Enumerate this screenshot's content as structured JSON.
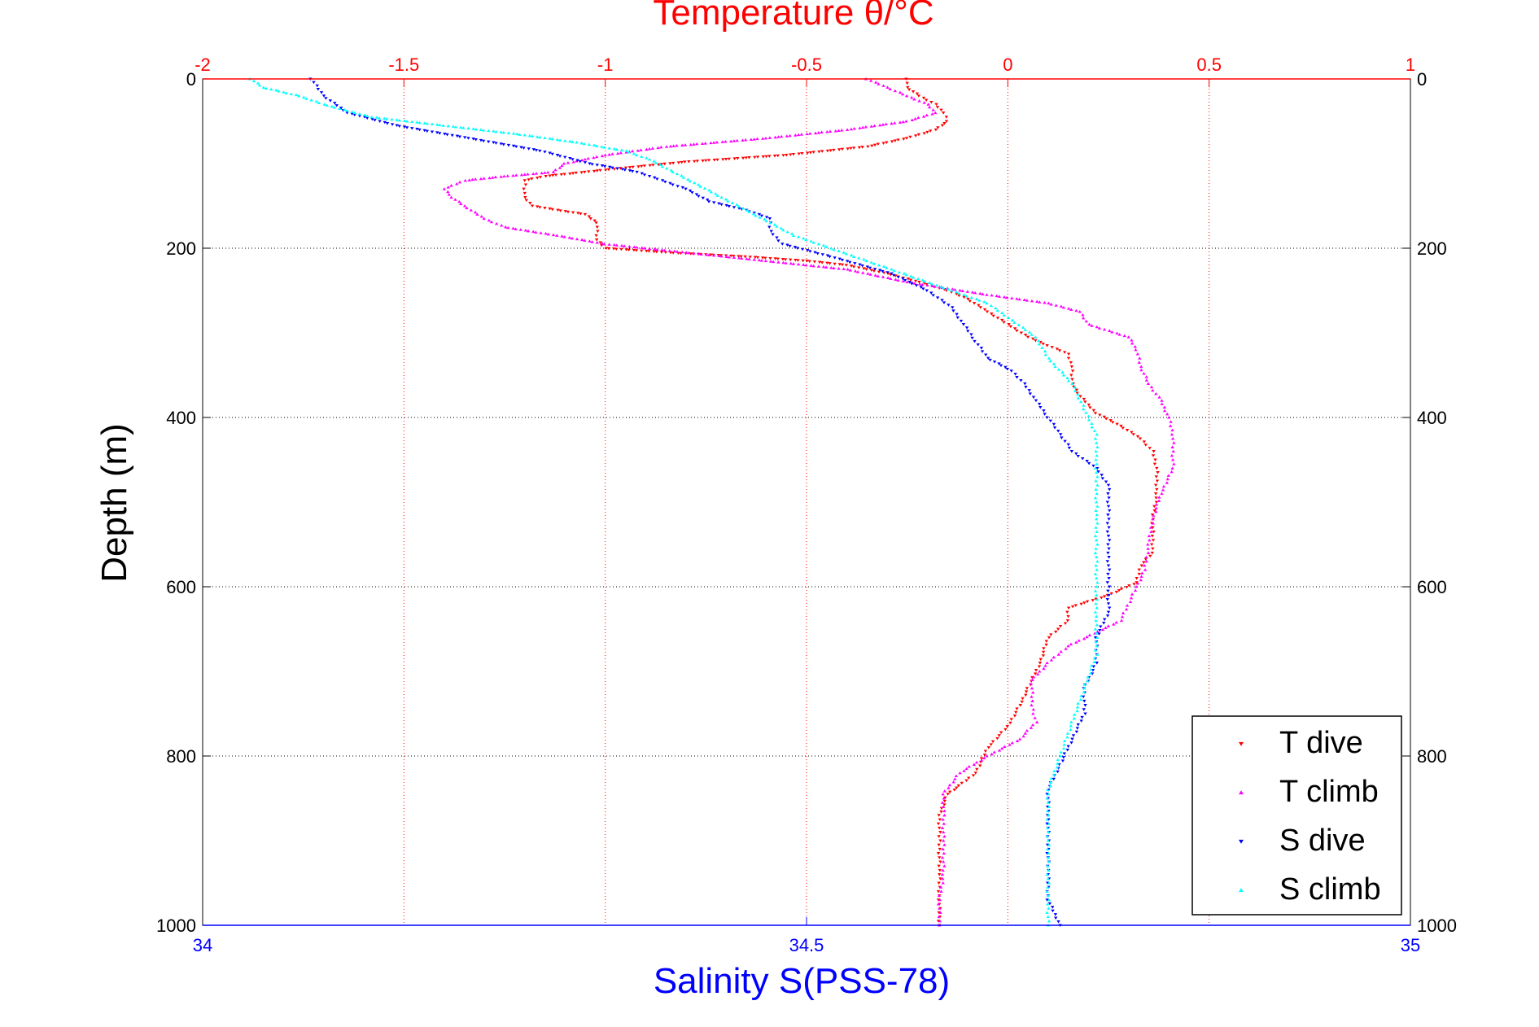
{
  "chart_data": {
    "type": "scatter",
    "title_top": "Temperature θ/°C",
    "xlabel_bottom": "Salinity S(PSS-78)",
    "ylabel": "Depth (m)",
    "temperature_axis": {
      "range": [
        -2,
        1
      ],
      "ticks": [
        "-2",
        "-1.5",
        "-1",
        "-0.5",
        "0",
        "0.5",
        "1"
      ],
      "color": "#ff0000",
      "position": "top"
    },
    "salinity_axis": {
      "range": [
        34,
        35
      ],
      "ticks": [
        "34",
        "34.5",
        "35"
      ],
      "color": "#0000ff",
      "position": "bottom"
    },
    "depth_axis": {
      "range": [
        0,
        1000
      ],
      "reversed": true,
      "ticks": [
        "0",
        "200",
        "400",
        "600",
        "800",
        "1000"
      ]
    },
    "grid": true,
    "legend_position": "bottom-right",
    "series": [
      {
        "name": "T dive",
        "axis": "temperature",
        "color": "#ff0000",
        "marker": "triangle-down",
        "points": [
          [
            -0.25,
            0
          ],
          [
            -0.25,
            10
          ],
          [
            -0.22,
            20
          ],
          [
            -0.18,
            30
          ],
          [
            -0.16,
            40
          ],
          [
            -0.15,
            50
          ],
          [
            -0.18,
            60
          ],
          [
            -0.25,
            70
          ],
          [
            -0.35,
            80
          ],
          [
            -0.55,
            90
          ],
          [
            -0.8,
            98
          ],
          [
            -0.95,
            105
          ],
          [
            -1.05,
            110
          ],
          [
            -1.15,
            115
          ],
          [
            -1.2,
            120
          ],
          [
            -1.2,
            130
          ],
          [
            -1.2,
            140
          ],
          [
            -1.18,
            150
          ],
          [
            -1.12,
            155
          ],
          [
            -1.05,
            160
          ],
          [
            -1.02,
            170
          ],
          [
            -1.02,
            180
          ],
          [
            -1.02,
            190
          ],
          [
            -1.0,
            200
          ],
          [
            -0.85,
            205
          ],
          [
            -0.65,
            210
          ],
          [
            -0.5,
            215
          ],
          [
            -0.4,
            220
          ],
          [
            -0.3,
            230
          ],
          [
            -0.22,
            240
          ],
          [
            -0.15,
            250
          ],
          [
            -0.1,
            260
          ],
          [
            -0.05,
            275
          ],
          [
            0.0,
            290
          ],
          [
            0.05,
            305
          ],
          [
            0.1,
            315
          ],
          [
            0.15,
            325
          ],
          [
            0.16,
            340
          ],
          [
            0.16,
            360
          ],
          [
            0.18,
            375
          ],
          [
            0.22,
            395
          ],
          [
            0.28,
            410
          ],
          [
            0.33,
            425
          ],
          [
            0.36,
            440
          ],
          [
            0.37,
            460
          ],
          [
            0.37,
            490
          ],
          [
            0.36,
            520
          ],
          [
            0.36,
            560
          ],
          [
            0.33,
            575
          ],
          [
            0.32,
            595
          ],
          [
            0.25,
            610
          ],
          [
            0.15,
            625
          ],
          [
            0.15,
            640
          ],
          [
            0.1,
            660
          ],
          [
            0.08,
            690
          ],
          [
            0.05,
            720
          ],
          [
            0.03,
            740
          ],
          [
            0.0,
            765
          ],
          [
            -0.05,
            790
          ],
          [
            -0.08,
            820
          ],
          [
            -0.12,
            835
          ],
          [
            -0.15,
            845
          ],
          [
            -0.17,
            870
          ],
          [
            -0.17,
            900
          ],
          [
            -0.17,
            940
          ],
          [
            -0.17,
            970
          ],
          [
            -0.17,
            1000
          ]
        ]
      },
      {
        "name": "T climb",
        "axis": "temperature",
        "color": "#ff00ff",
        "marker": "triangle-up",
        "points": [
          [
            -0.35,
            0
          ],
          [
            -0.3,
            10
          ],
          [
            -0.25,
            20
          ],
          [
            -0.2,
            30
          ],
          [
            -0.18,
            40
          ],
          [
            -0.25,
            50
          ],
          [
            -0.4,
            60
          ],
          [
            -0.6,
            70
          ],
          [
            -0.85,
            80
          ],
          [
            -1.0,
            90
          ],
          [
            -1.1,
            100
          ],
          [
            -1.13,
            110
          ],
          [
            -1.25,
            115
          ],
          [
            -1.35,
            120
          ],
          [
            -1.4,
            130
          ],
          [
            -1.38,
            140
          ],
          [
            -1.35,
            150
          ],
          [
            -1.3,
            165
          ],
          [
            -1.25,
            175
          ],
          [
            -1.12,
            185
          ],
          [
            -1.0,
            195
          ],
          [
            -0.8,
            205
          ],
          [
            -0.6,
            215
          ],
          [
            -0.4,
            225
          ],
          [
            -0.25,
            240
          ],
          [
            -0.05,
            255
          ],
          [
            0.1,
            265
          ],
          [
            0.18,
            275
          ],
          [
            0.2,
            290
          ],
          [
            0.3,
            305
          ],
          [
            0.32,
            320
          ],
          [
            0.33,
            340
          ],
          [
            0.35,
            360
          ],
          [
            0.38,
            380
          ],
          [
            0.4,
            400
          ],
          [
            0.41,
            420
          ],
          [
            0.41,
            440
          ],
          [
            0.41,
            460
          ],
          [
            0.38,
            490
          ],
          [
            0.36,
            520
          ],
          [
            0.35,
            550
          ],
          [
            0.34,
            580
          ],
          [
            0.32,
            600
          ],
          [
            0.28,
            640
          ],
          [
            0.15,
            670
          ],
          [
            0.1,
            690
          ],
          [
            0.06,
            710
          ],
          [
            0.06,
            740
          ],
          [
            0.07,
            760
          ],
          [
            0.03,
            780
          ],
          [
            -0.05,
            800
          ],
          [
            -0.12,
            820
          ],
          [
            -0.16,
            845
          ],
          [
            -0.16,
            870
          ],
          [
            -0.16,
            900
          ],
          [
            -0.16,
            940
          ],
          [
            -0.17,
            970
          ],
          [
            -0.17,
            1000
          ]
        ]
      },
      {
        "name": "S dive",
        "axis": "salinity",
        "color": "#0000ff",
        "marker": "triangle-down",
        "points": [
          [
            34.09,
            0
          ],
          [
            34.1,
            20
          ],
          [
            34.12,
            40
          ],
          [
            34.16,
            55
          ],
          [
            34.22,
            70
          ],
          [
            34.28,
            85
          ],
          [
            34.32,
            100
          ],
          [
            34.36,
            110
          ],
          [
            34.38,
            120
          ],
          [
            34.4,
            130
          ],
          [
            34.42,
            145
          ],
          [
            34.45,
            155
          ],
          [
            34.47,
            165
          ],
          [
            34.47,
            180
          ],
          [
            34.48,
            195
          ],
          [
            34.52,
            210
          ],
          [
            34.57,
            230
          ],
          [
            34.6,
            250
          ],
          [
            34.62,
            270
          ],
          [
            34.63,
            290
          ],
          [
            34.64,
            310
          ],
          [
            34.65,
            330
          ],
          [
            34.67,
            345
          ],
          [
            34.68,
            360
          ],
          [
            34.69,
            380
          ],
          [
            34.7,
            400
          ],
          [
            34.71,
            420
          ],
          [
            34.72,
            440
          ],
          [
            34.74,
            460
          ],
          [
            34.75,
            480
          ],
          [
            34.75,
            500
          ],
          [
            34.75,
            530
          ],
          [
            34.75,
            560
          ],
          [
            34.75,
            600
          ],
          [
            34.75,
            630
          ],
          [
            34.74,
            660
          ],
          [
            34.74,
            690
          ],
          [
            34.73,
            720
          ],
          [
            34.73,
            750
          ],
          [
            34.72,
            780
          ],
          [
            34.71,
            810
          ],
          [
            34.7,
            840
          ],
          [
            34.7,
            870
          ],
          [
            34.7,
            900
          ],
          [
            34.7,
            940
          ],
          [
            34.7,
            970
          ],
          [
            34.71,
            1000
          ]
        ]
      },
      {
        "name": "S climb",
        "axis": "salinity",
        "color": "#00ffff",
        "marker": "triangle-up",
        "points": [
          [
            34.04,
            0
          ],
          [
            34.05,
            10
          ],
          [
            34.08,
            20
          ],
          [
            34.1,
            30
          ],
          [
            34.14,
            45
          ],
          [
            34.2,
            55
          ],
          [
            34.26,
            65
          ],
          [
            34.31,
            75
          ],
          [
            34.35,
            85
          ],
          [
            34.37,
            95
          ],
          [
            34.39,
            110
          ],
          [
            34.41,
            125
          ],
          [
            34.43,
            140
          ],
          [
            34.45,
            155
          ],
          [
            34.47,
            170
          ],
          [
            34.49,
            185
          ],
          [
            34.52,
            200
          ],
          [
            34.55,
            215
          ],
          [
            34.58,
            230
          ],
          [
            34.62,
            250
          ],
          [
            34.65,
            265
          ],
          [
            34.67,
            285
          ],
          [
            34.69,
            305
          ],
          [
            34.7,
            330
          ],
          [
            34.72,
            360
          ],
          [
            34.73,
            390
          ],
          [
            34.74,
            420
          ],
          [
            34.74,
            450
          ],
          [
            34.74,
            480
          ],
          [
            34.74,
            520
          ],
          [
            34.74,
            560
          ],
          [
            34.74,
            600
          ],
          [
            34.74,
            640
          ],
          [
            34.74,
            680
          ],
          [
            34.73,
            720
          ],
          [
            34.72,
            760
          ],
          [
            34.71,
            800
          ],
          [
            34.7,
            840
          ],
          [
            34.7,
            880
          ],
          [
            34.7,
            920
          ],
          [
            34.7,
            960
          ],
          [
            34.7,
            1000
          ]
        ]
      }
    ]
  }
}
